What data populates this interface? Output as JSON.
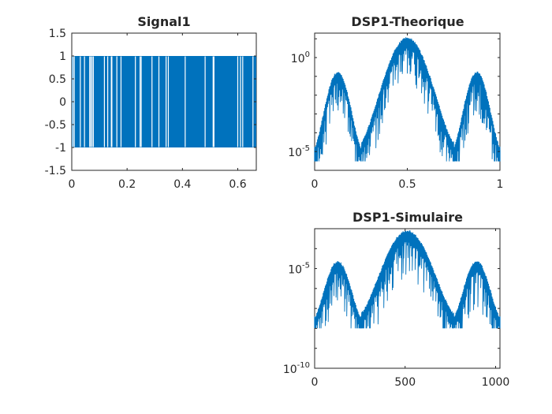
{
  "figure_background": "#ffffff",
  "line_color": "#0072bd",
  "axis_color": "#262626",
  "chart_data": [
    {
      "id": "signal1",
      "type": "line",
      "title": "Signal1",
      "xlabel": "",
      "ylabel": "",
      "xlim": [
        0,
        0.667
      ],
      "ylim": [
        -1.5,
        1.5
      ],
      "yscale": "linear",
      "grid": false,
      "x_ticks": [
        0,
        0.2,
        0.4,
        0.6
      ],
      "x_tick_labels": [
        "0",
        "0.2",
        "0.4",
        "0.6"
      ],
      "y_ticks": [
        -1.5,
        -1,
        -0.5,
        0,
        0.5,
        1,
        1.5
      ],
      "y_tick_labels": [
        "-1.5",
        "-1",
        "-0.5",
        "0",
        "0.5",
        "1",
        "1.5"
      ],
      "series": [
        {
          "description": "binary NRZ waveform switching between -1 and +1",
          "levels": [
            -1,
            1
          ],
          "gap_positions": [
            0.004,
            0.009,
            0.031,
            0.046,
            0.065,
            0.068,
            0.073,
            0.078,
            0.118,
            0.13,
            0.143,
            0.145,
            0.163,
            0.178,
            0.23,
            0.247,
            0.251,
            0.29,
            0.315,
            0.341,
            0.349,
            0.41,
            0.482,
            0.511,
            0.514,
            0.6,
            0.61,
            0.618,
            0.655
          ]
        }
      ]
    },
    {
      "id": "dsp1-theorique",
      "type": "line",
      "title": "DSP1-Theorique",
      "xlabel": "",
      "ylabel": "",
      "xlim": [
        0,
        1
      ],
      "ylim": [
        1e-06,
        20
      ],
      "yscale": "log",
      "grid": false,
      "x_ticks": [
        0,
        0.5,
        1
      ],
      "x_tick_labels": [
        "0",
        "0.5",
        "1"
      ],
      "y_tick_labels": [
        {
          "value": 1,
          "base": "10",
          "exp": "0"
        },
        {
          "value": 1e-05,
          "base": "10",
          "exp": "-5"
        }
      ],
      "series": [
        {
          "description": "noisy power spectral density with three lobes",
          "lobe_centers": [
            0.125,
            0.5,
            0.875
          ],
          "lobe_peak_values": [
            0.15,
            10,
            0.15
          ],
          "null_positions": [
            0,
            0.25,
            0.75,
            1
          ],
          "null_min_value": 3e-06
        }
      ]
    },
    {
      "id": "dsp1-simulaire",
      "type": "line",
      "title": "DSP1-Simulaire",
      "xlabel": "",
      "ylabel": "",
      "xlim": [
        0,
        1024
      ],
      "ylim": [
        1e-10,
        0.001
      ],
      "yscale": "log",
      "grid": false,
      "x_ticks": [
        0,
        500,
        1000
      ],
      "x_tick_labels": [
        "0",
        "500",
        "1000"
      ],
      "y_tick_labels": [
        {
          "value": 1e-05,
          "base": "10",
          "exp": "-5"
        },
        {
          "value": 1e-10,
          "base": "10",
          "exp": "-10"
        }
      ],
      "series": [
        {
          "description": "noisy estimated power spectral density with three lobes",
          "lobe_centers": [
            128,
            512,
            896
          ],
          "lobe_peak_values": [
            2e-05,
            0.0007,
            2e-05
          ],
          "null_positions": [
            0,
            256,
            768,
            1024
          ],
          "null_min_value": 1e-08
        }
      ]
    }
  ]
}
